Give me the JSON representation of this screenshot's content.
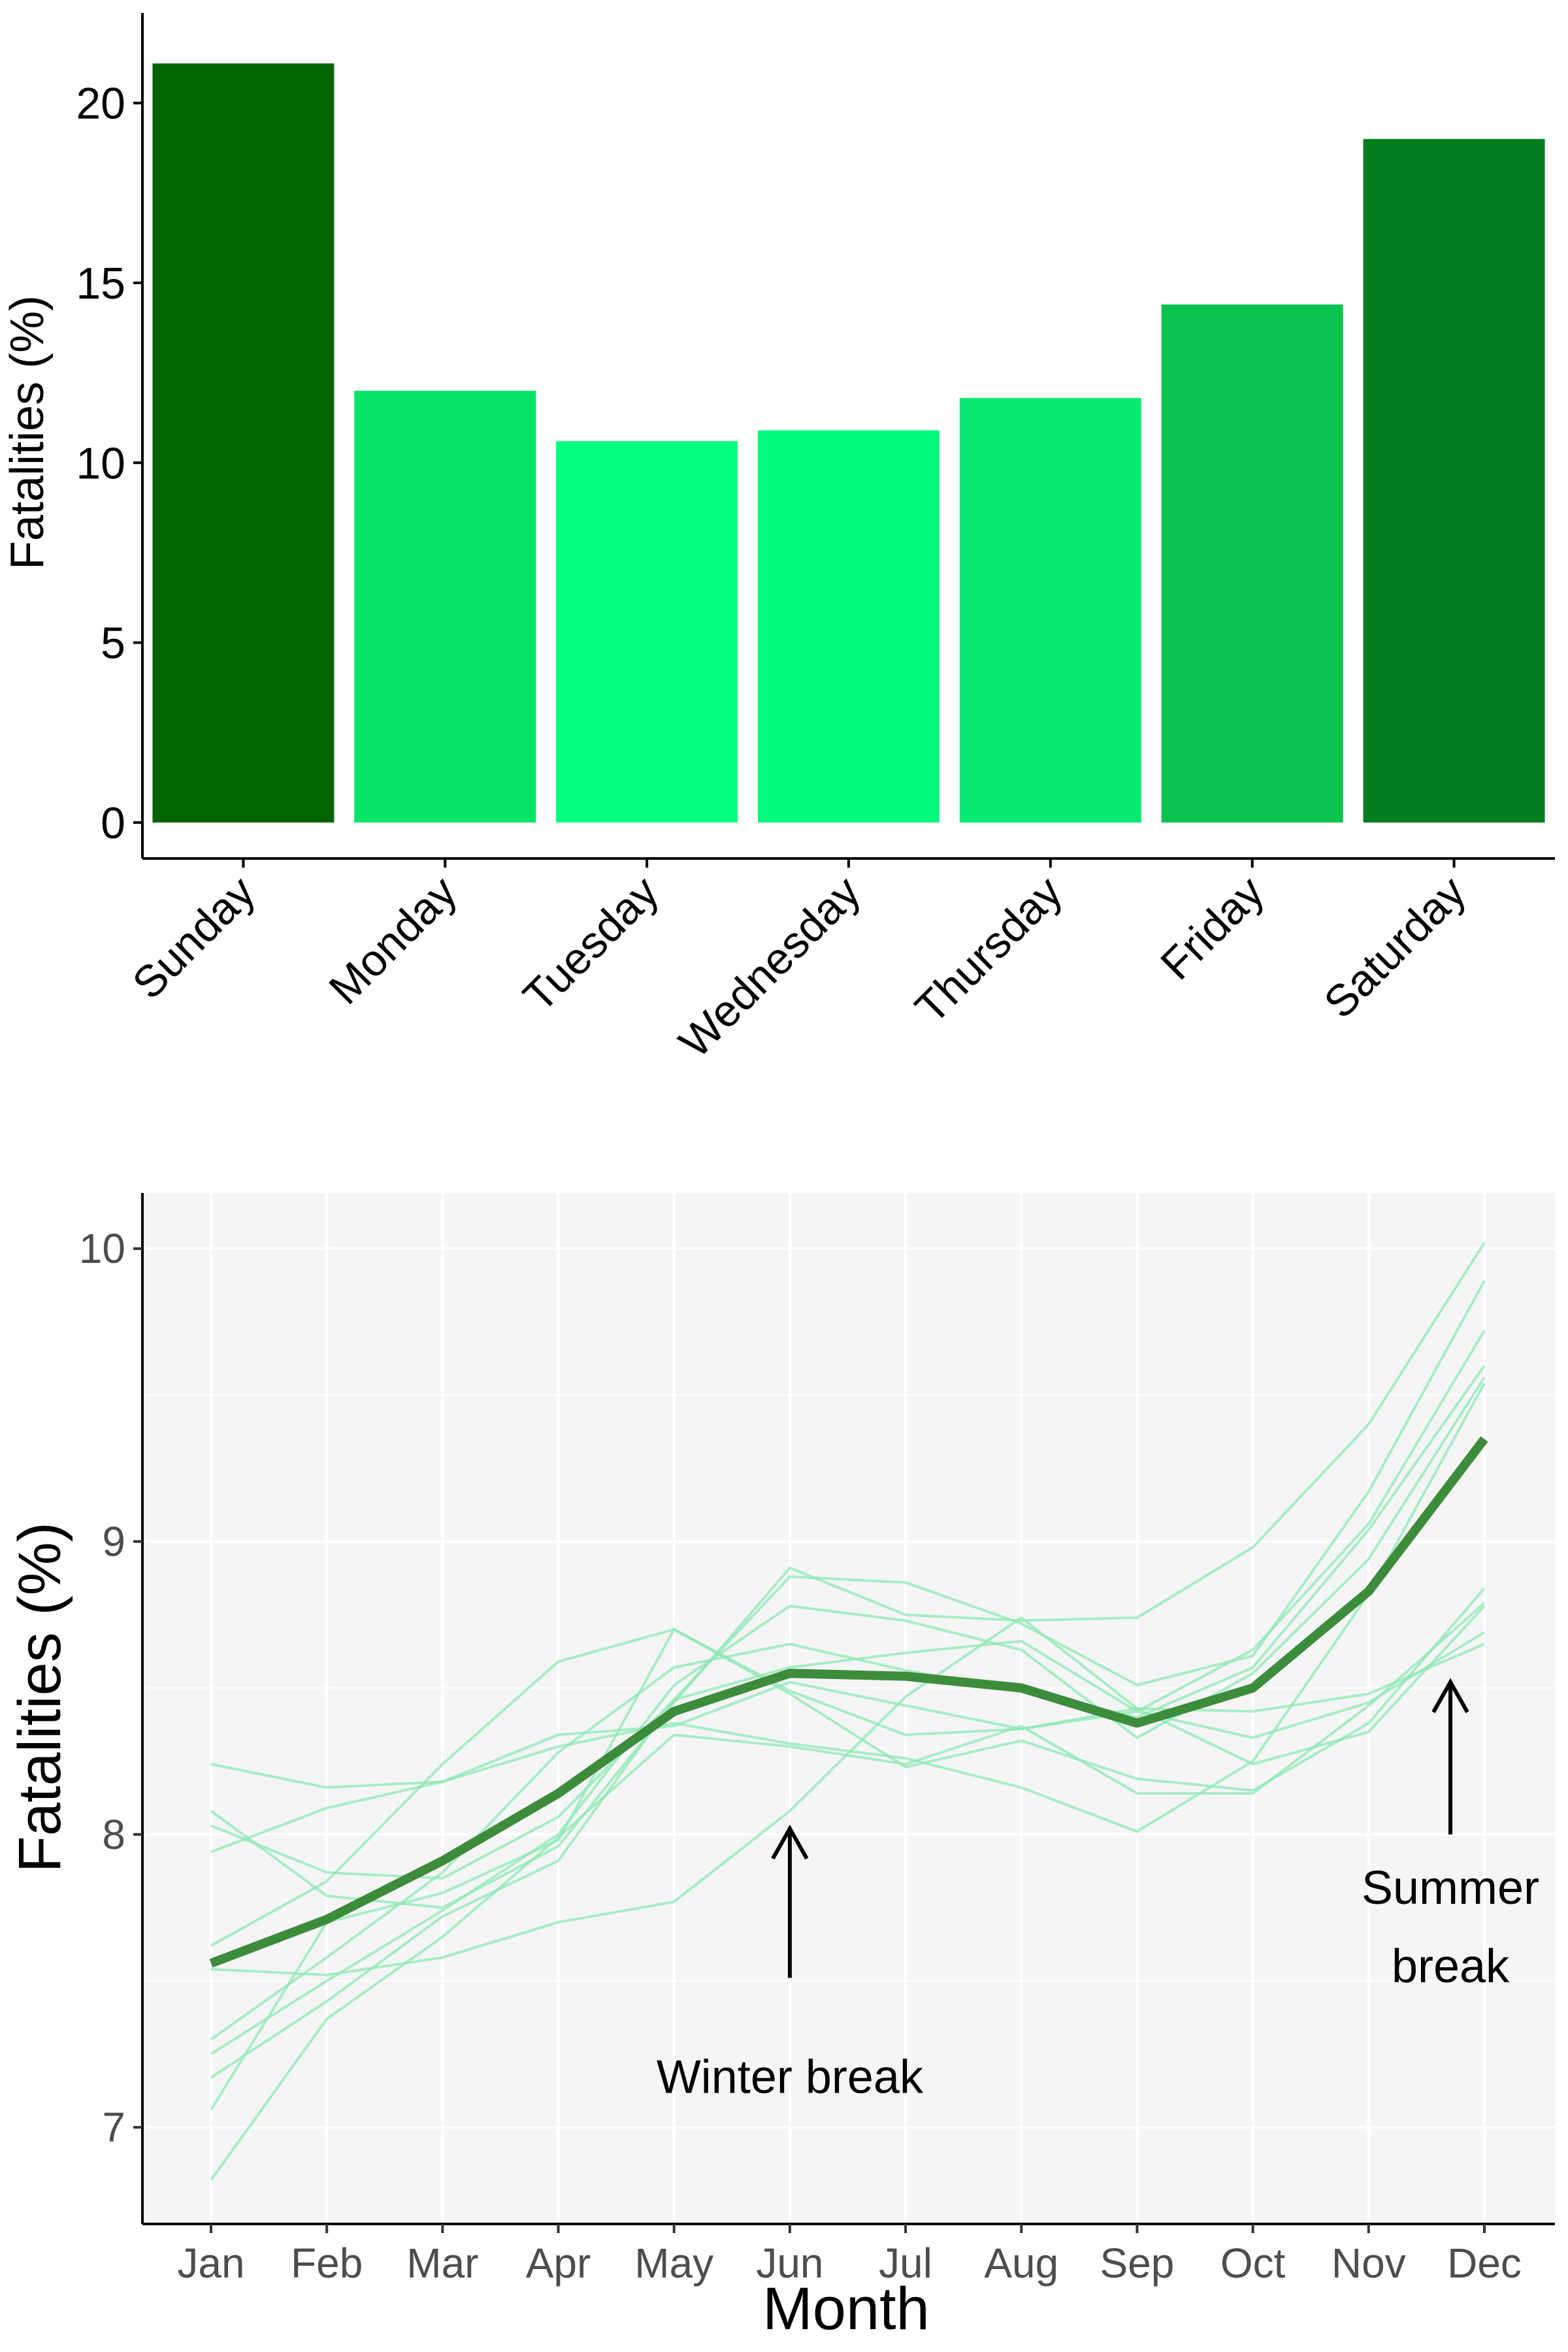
{
  "chart_data": [
    {
      "type": "bar",
      "categories": [
        "Sunday",
        "Monday",
        "Tuesday",
        "Wednesday",
        "Thursday",
        "Friday",
        "Saturday"
      ],
      "values": [
        21.1,
        12.0,
        10.6,
        10.9,
        11.8,
        14.4,
        19.0
      ],
      "colors": [
        "#006400",
        "#07e468",
        "#00ff7f",
        "#02fa7c",
        "#05ea6f",
        "#0ac24e",
        "#047d1e"
      ],
      "xlabel": "",
      "ylabel": "Fatalities (%)",
      "ylim": [
        -1,
        22.5
      ],
      "yticks": [
        0,
        5,
        10,
        15,
        20
      ],
      "grid": false
    },
    {
      "type": "line",
      "x": [
        "Jan",
        "Feb",
        "Mar",
        "Apr",
        "May",
        "Jun",
        "Jul",
        "Aug",
        "Sep",
        "Oct",
        "Nov",
        "Dec"
      ],
      "xlabel": "Month",
      "ylabel": "Fatalities (%)",
      "ylim": [
        6.67,
        10.19
      ],
      "yticks": [
        7,
        8,
        9,
        10
      ],
      "grid": true,
      "series": [
        {
          "values": [
            7.56,
            7.71,
            7.91,
            8.14,
            8.42,
            8.55,
            8.54,
            8.5,
            8.38,
            8.5,
            8.83,
            9.35
          ],
          "emphasis": true
        },
        {
          "values": [
            8.24,
            8.16,
            8.18,
            8.3,
            8.38,
            8.31,
            8.26,
            8.16,
            8.01,
            8.25,
            8.82,
            9.54
          ]
        },
        {
          "values": [
            7.94,
            8.09,
            8.18,
            8.34,
            8.37,
            8.52,
            8.44,
            8.36,
            8.43,
            8.42,
            8.48,
            8.65
          ]
        },
        {
          "values": [
            8.08,
            7.79,
            7.75,
            7.96,
            8.45,
            8.91,
            8.75,
            8.73,
            8.74,
            8.98,
            9.4,
            10.02
          ]
        },
        {
          "values": [
            8.03,
            7.87,
            7.85,
            8.06,
            8.46,
            8.88,
            8.86,
            8.72,
            8.51,
            8.61,
            9.17,
            9.89
          ]
        },
        {
          "values": [
            7.62,
            7.84,
            8.24,
            8.59,
            8.7,
            8.49,
            8.34,
            8.36,
            8.42,
            8.63,
            9.06,
            9.72
          ]
        },
        {
          "values": [
            7.3,
            7.58,
            7.87,
            8.28,
            8.57,
            8.65,
            8.56,
            8.49,
            8.4,
            8.57,
            9.04,
            9.6
          ]
        },
        {
          "values": [
            7.25,
            7.5,
            7.74,
            8.0,
            8.51,
            8.78,
            8.73,
            8.63,
            8.33,
            8.55,
            8.94,
            9.56
          ]
        },
        {
          "values": [
            7.17,
            7.43,
            7.72,
            7.91,
            8.46,
            8.57,
            8.62,
            8.66,
            8.42,
            8.33,
            8.45,
            8.69
          ]
        },
        {
          "values": [
            7.06,
            7.7,
            7.8,
            7.98,
            8.7,
            8.48,
            8.23,
            8.32,
            8.19,
            8.15,
            8.38,
            8.84
          ]
        },
        {
          "values": [
            6.82,
            7.37,
            7.65,
            7.99,
            8.34,
            8.3,
            8.24,
            8.37,
            8.14,
            8.14,
            8.44,
            8.79
          ]
        },
        {
          "values": [
            7.54,
            7.52,
            7.58,
            7.7,
            7.77,
            8.08,
            8.47,
            8.74,
            8.43,
            8.24,
            8.35,
            8.78
          ]
        }
      ],
      "colors": {
        "emphasis": "#3c8c3c",
        "background_series": "#8ee8b4",
        "panel": "#f5f5f5",
        "grid": "#ffffff"
      },
      "annotations": [
        {
          "text": "Winter break",
          "at": "Jun"
        },
        {
          "text": [
            "Summer",
            "break"
          ],
          "at": "Dec"
        }
      ]
    }
  ]
}
